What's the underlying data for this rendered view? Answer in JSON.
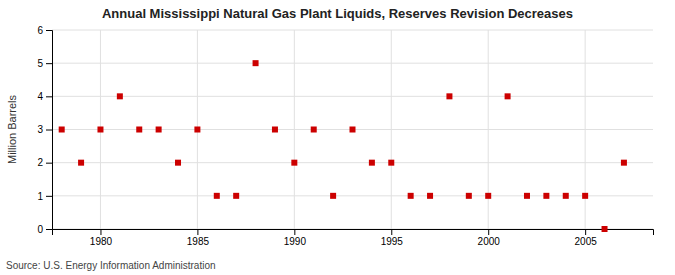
{
  "chart_data": {
    "type": "scatter",
    "title": "Annual Mississippi Natural Gas Plant Liquids, Reserves Revision Decreases",
    "ylabel": "Million Barrels",
    "annotations": [
      "Source: U.S. Energy Information Administration"
    ],
    "x": [
      1978,
      1979,
      1980,
      1981,
      1982,
      1983,
      1984,
      1985,
      1986,
      1987,
      1988,
      1989,
      1990,
      1991,
      1992,
      1993,
      1994,
      1995,
      1996,
      1997,
      1998,
      1999,
      2000,
      2001,
      2002,
      2003,
      2004,
      2005,
      2006,
      2007
    ],
    "values": [
      3,
      2,
      3,
      4,
      3,
      3,
      2,
      3,
      1,
      1,
      5,
      3,
      2,
      3,
      1,
      3,
      2,
      2,
      1,
      1,
      4,
      1,
      1,
      4,
      1,
      1,
      1,
      1,
      0,
      2
    ],
    "color": "#cc0000",
    "marker": "square",
    "xlim": [
      1977.5,
      2008.5
    ],
    "ylim": [
      0,
      6
    ],
    "xticks": [
      1980,
      1985,
      1990,
      1995,
      2000,
      2005
    ],
    "yticks": [
      0,
      1,
      2,
      3,
      4,
      5,
      6
    ],
    "grid": true
  }
}
